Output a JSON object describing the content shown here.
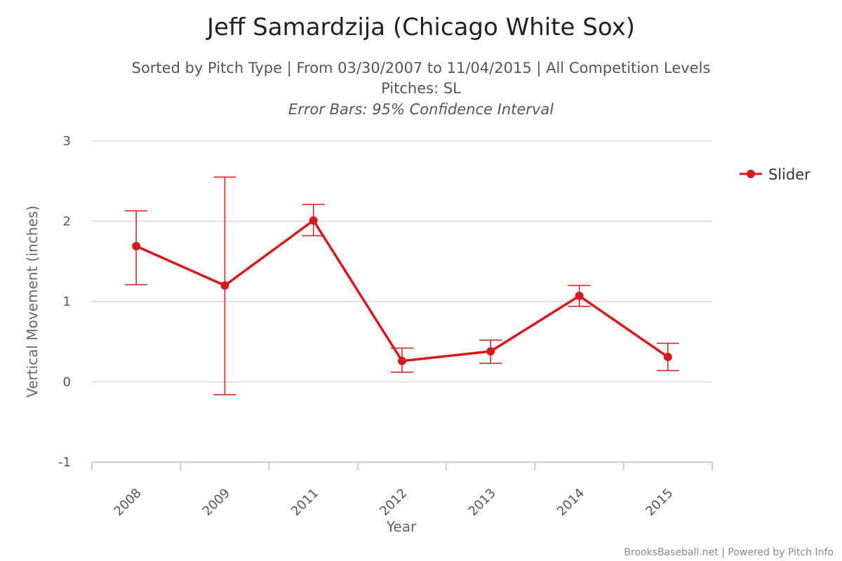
{
  "chart_data": {
    "type": "line",
    "title": "Jeff Samardzija (Chicago White Sox)",
    "subtitle": "Sorted by Pitch Type | From 03/30/2007 to 11/04/2015 | All Competition Levels",
    "subtitle2": "Pitches: SL",
    "subtitle3": "Error Bars: 95% Confidence Interval",
    "xlabel": "Year",
    "ylabel": "Vertical Movement (inches)",
    "categories": [
      "2008",
      "2009",
      "2011",
      "2012",
      "2013",
      "2014",
      "2015"
    ],
    "ylim": [
      -1,
      3
    ],
    "yticks": [
      "3",
      "2",
      "1",
      "0",
      "-1"
    ],
    "grid": true,
    "legend_position": "right",
    "series": [
      {
        "name": "Slider",
        "color": "#d7191c",
        "values": [
          1.69,
          1.2,
          2.01,
          0.26,
          0.38,
          1.07,
          0.31
        ],
        "error_low": [
          1.21,
          -0.16,
          1.82,
          0.12,
          0.23,
          0.94,
          0.14
        ],
        "error_high": [
          2.13,
          2.55,
          2.21,
          0.42,
          0.52,
          1.2,
          0.48
        ]
      }
    ],
    "credit": "BrooksBaseball.net | Powered by Pitch Info"
  }
}
